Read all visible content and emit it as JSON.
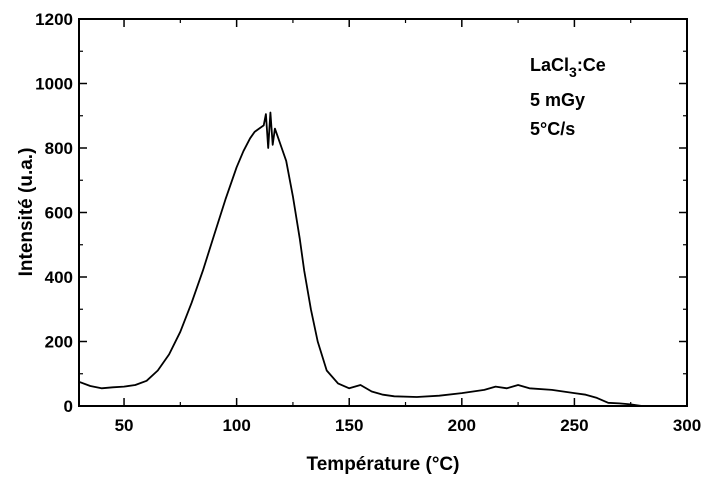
{
  "chart_data": {
    "type": "line",
    "title": "",
    "xlabel": "Température (°C)",
    "ylabel": "Intensité (u.a.)",
    "xlim": [
      30,
      300
    ],
    "ylim": [
      0,
      1200
    ],
    "xticks": [
      50,
      100,
      150,
      200,
      250,
      300
    ],
    "yticks": [
      0,
      200,
      400,
      600,
      800,
      1000,
      1200
    ],
    "xtick_labels": [
      "50",
      "100",
      "150",
      "200",
      "250",
      "300"
    ],
    "ytick_labels": [
      "0",
      "200",
      "400",
      "600",
      "800",
      "1000",
      "1200"
    ],
    "grid": false,
    "line_color": "#000000",
    "annotations": {
      "material_main": "LaCl",
      "material_sub": "3",
      "material_suffix": ":Ce",
      "dose": "5 mGy",
      "rate": "5°C/s"
    },
    "series": [
      {
        "x": [
          30,
          35,
          40,
          45,
          50,
          55,
          60,
          65,
          70,
          75,
          80,
          85,
          90,
          95,
          100,
          103,
          106,
          108,
          110,
          112,
          113,
          114,
          115,
          116,
          117,
          118,
          120,
          122,
          125,
          128,
          130,
          133,
          136,
          140,
          145,
          150,
          155,
          160,
          165,
          170,
          180,
          190,
          200,
          210,
          215,
          220,
          225,
          230,
          240,
          250,
          255,
          260,
          265,
          270,
          275,
          280,
          290,
          300
        ],
        "y": [
          75,
          62,
          55,
          58,
          60,
          65,
          78,
          110,
          160,
          230,
          320,
          420,
          530,
          640,
          740,
          790,
          830,
          850,
          860,
          870,
          905,
          800,
          910,
          810,
          860,
          840,
          800,
          760,
          650,
          520,
          420,
          300,
          200,
          110,
          70,
          55,
          65,
          45,
          35,
          30,
          28,
          32,
          40,
          50,
          60,
          55,
          65,
          55,
          50,
          40,
          35,
          25,
          10,
          8,
          5,
          0,
          0,
          0
        ]
      }
    ]
  }
}
